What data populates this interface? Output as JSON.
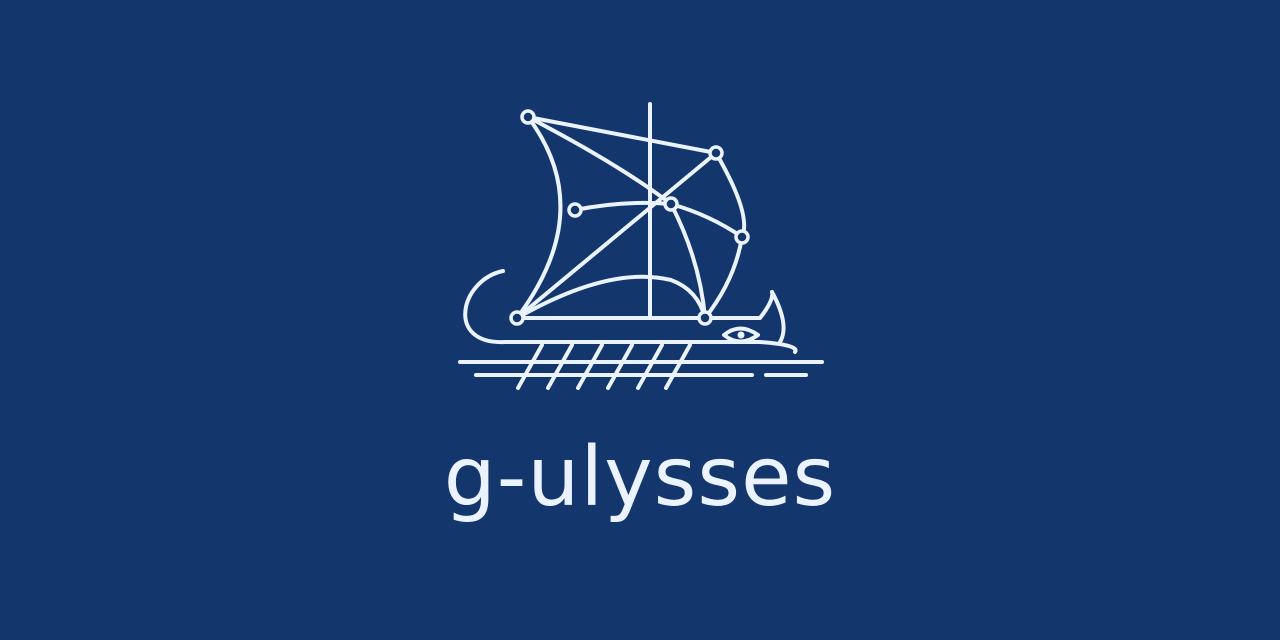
{
  "banner": {
    "wordmark": "g-ulysses",
    "logo_icon": "greek-galley-ship-icon",
    "colors": {
      "background": "#13366d",
      "foreground": "#eaf3ff"
    }
  }
}
